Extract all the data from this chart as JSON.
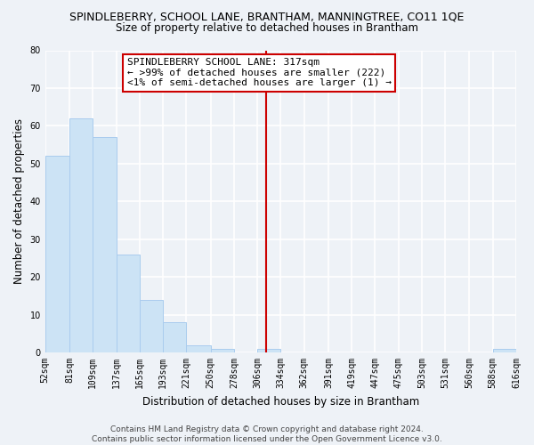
{
  "title": "SPINDLEBERRY, SCHOOL LANE, BRANTHAM, MANNINGTREE, CO11 1QE",
  "subtitle": "Size of property relative to detached houses in Brantham",
  "xlabel": "Distribution of detached houses by size in Brantham",
  "ylabel": "Number of detached properties",
  "bin_edges": [
    52,
    81,
    109,
    137,
    165,
    193,
    221,
    250,
    278,
    306,
    334,
    362,
    391,
    419,
    447,
    475,
    503,
    531,
    560,
    588,
    616
  ],
  "bin_counts": [
    52,
    62,
    57,
    26,
    14,
    8,
    2,
    1,
    0,
    1,
    0,
    0,
    0,
    0,
    0,
    0,
    0,
    0,
    0,
    1
  ],
  "bar_facecolor": "#cce3f5",
  "bar_edgecolor": "#aaccee",
  "vline_x": 317,
  "vline_color": "#cc0000",
  "annotation_text": "SPINDLEBERRY SCHOOL LANE: 317sqm\n← >99% of detached houses are smaller (222)\n<1% of semi-detached houses are larger (1) →",
  "annotation_boxcolor": "white",
  "annotation_edgecolor": "#cc0000",
  "ylim": [
    0,
    80
  ],
  "yticks": [
    0,
    10,
    20,
    30,
    40,
    50,
    60,
    70,
    80
  ],
  "tick_labels": [
    "52sqm",
    "81sqm",
    "109sqm",
    "137sqm",
    "165sqm",
    "193sqm",
    "221sqm",
    "250sqm",
    "278sqm",
    "306sqm",
    "334sqm",
    "362sqm",
    "391sqm",
    "419sqm",
    "447sqm",
    "475sqm",
    "503sqm",
    "531sqm",
    "560sqm",
    "588sqm",
    "616sqm"
  ],
  "footer_text": "Contains HM Land Registry data © Crown copyright and database right 2024.\nContains public sector information licensed under the Open Government Licence v3.0.",
  "background_color": "#eef2f7",
  "grid_color": "white",
  "title_fontsize": 9,
  "subtitle_fontsize": 8.5,
  "axis_label_fontsize": 8.5,
  "tick_fontsize": 7,
  "annotation_fontsize": 8,
  "footer_fontsize": 6.5
}
